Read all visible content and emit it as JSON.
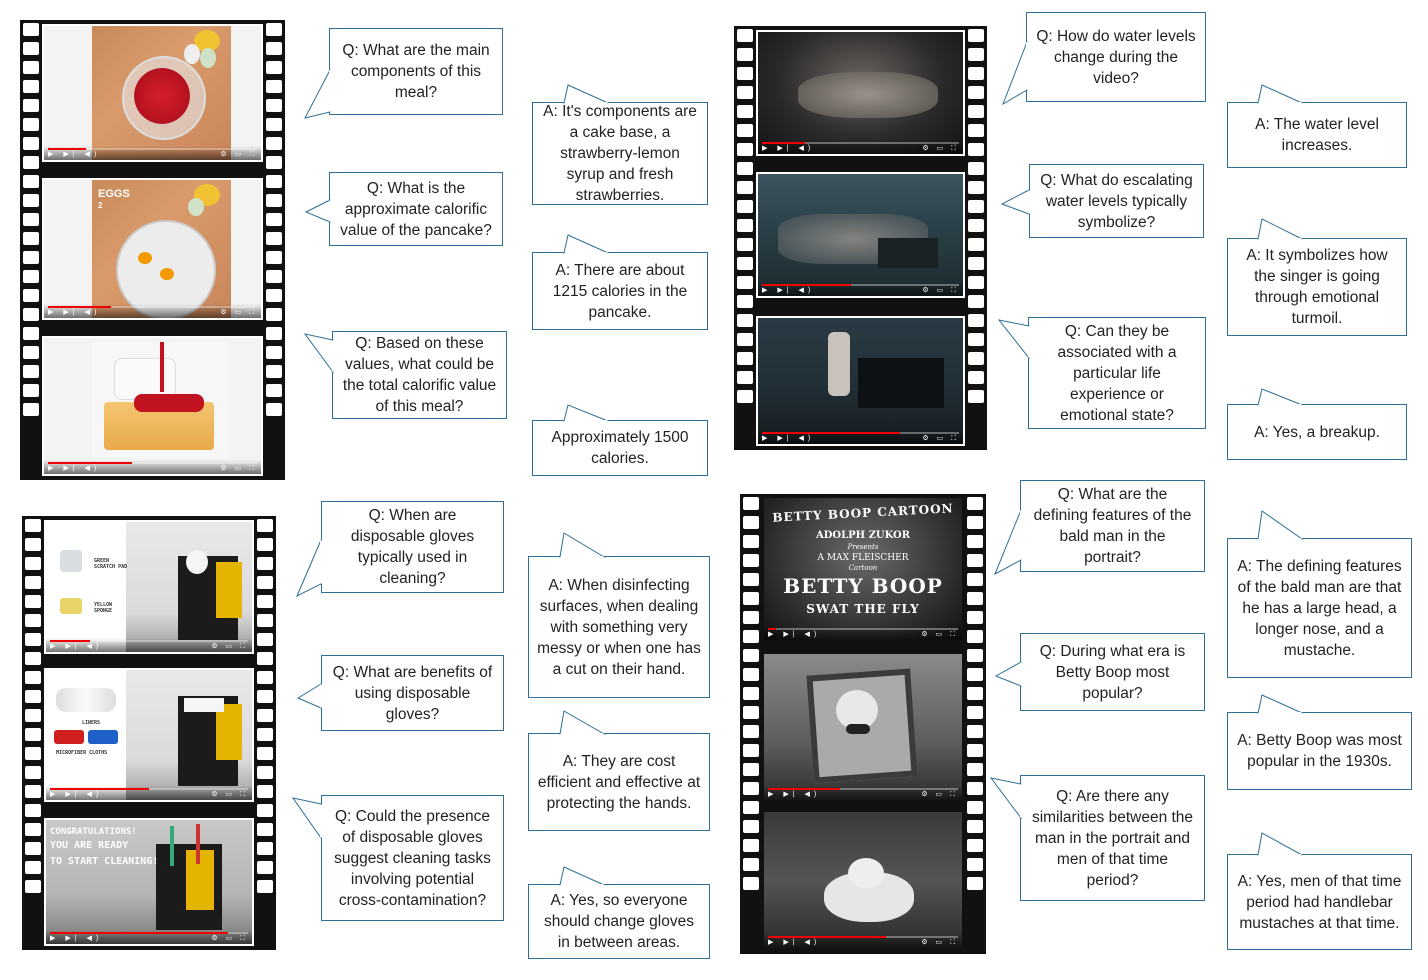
{
  "panels": {
    "food": {
      "q1": "Q: What are the main components of this meal?",
      "a1": "A: It's components are a cake base, a strawberry-lemon syrup and fresh strawberries.",
      "q2": "Q: What is the approximate calorific value of the pancake?",
      "a2": "A: There are about 1215 calories in the pancake.",
      "q3": "Q: Based on these values, what could be the total calorific value of this meal?",
      "a3": "Approximately 1500 calories.",
      "frame2_caption_1": "EGGS",
      "frame2_caption_2": "2"
    },
    "water": {
      "q1": "Q: How do water levels change during the video?",
      "a1": "A: The water level increases.",
      "q2": "Q: What do escalating water levels typically symbolize?",
      "a2": "A: It symbolizes how the singer is going through emotional turmoil.",
      "q3": "Q: Can they be associated with a particular life experience or emotional state?",
      "a3": "A: Yes, a breakup."
    },
    "cleaning": {
      "q1": "Q: When are disposable gloves typically used in cleaning?",
      "a1": "A: When disinfecting surfaces, when dealing with something very messy or when one has a cut on their hand.",
      "q2": "Q: What are benefits of using disposable gloves?",
      "a2": "A: They are cost efficient and effective at protecting the hands.",
      "q3": "Q: Could the presence of disposable gloves suggest cleaning tasks involving potential cross-contamination?",
      "a3": "A: Yes, so everyone should change gloves in between areas.",
      "frame1_label_a": "GREEN\nSCRATCH PAD",
      "frame1_label_b": "YELLOW\nSPONGE",
      "frame2_label_a": "LINERS",
      "frame2_label_b": "MICROFIBER CLOTHS",
      "frame3_line1": "CONGRATULATIONS!",
      "frame3_line2": "YOU ARE READY",
      "frame3_line3": "TO START CLEANING!"
    },
    "cartoon": {
      "q1": "Q: What are the defining features of the bald man in the portrait?",
      "a1": "A: The defining features of the bald man are that he has a large head, a longer nose, and a mustache.",
      "q2": "Q: During what era is Betty Boop most popular?",
      "a2": "A: Betty Boop was most popular in the 1930s.",
      "q3": "Q: Are there any similarities between the man in the portrait and men of that time period?",
      "a3": "A: Yes, men of that time period had handlebar mustaches at that time.",
      "title_top": "BETTY BOOP CARTOON",
      "title_producer": "ADOLPH ZUKOR",
      "title_presents": "Presents",
      "title_creator": "A MAX FLEISCHER",
      "title_cartoon": "Cartoon",
      "title_main": "BETTY BOOP",
      "title_episode": "SWAT THE FLY"
    }
  },
  "colors": {
    "callout_border": "#2f6f95",
    "film": "#111111",
    "progress": "#e00000"
  },
  "icons": [
    "play-icon",
    "next-icon",
    "volume-icon",
    "settings-icon",
    "fullscreen-icon"
  ]
}
